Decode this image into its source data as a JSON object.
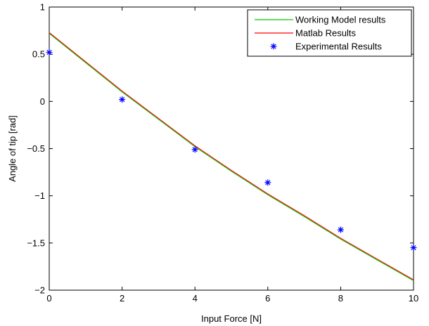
{
  "chart_data": {
    "type": "line",
    "title": "",
    "xlabel": "Input Force [N]",
    "ylabel": "Angle of tip [rad]",
    "xlim": [
      0,
      10
    ],
    "ylim": [
      -2,
      1
    ],
    "xticks": [
      0,
      2,
      4,
      6,
      8,
      10
    ],
    "yticks": [
      -2,
      -1.5,
      -1,
      -0.5,
      0,
      0.5,
      1
    ],
    "xtick_labels": [
      "0",
      "2",
      "4",
      "6",
      "8",
      "10"
    ],
    "ytick_labels": [
      "−2",
      "−1.5",
      "−1",
      "−0.5",
      "0",
      "0.5",
      "1"
    ],
    "grid": false,
    "legend_position": "top-right",
    "series": [
      {
        "name": "Working Model results",
        "kind": "line",
        "color": "#00cc00",
        "x": [
          0,
          1,
          2,
          3,
          4,
          5,
          6,
          7,
          8,
          9,
          10
        ],
        "y": [
          0.72,
          0.41,
          0.1,
          -0.19,
          -0.48,
          -0.74,
          -0.99,
          -1.22,
          -1.46,
          -1.68,
          -1.9
        ]
      },
      {
        "name": "Matlab Results",
        "kind": "line",
        "color": "#ff0000",
        "x": [
          0,
          1,
          2,
          3,
          4,
          5,
          6,
          7,
          8,
          9,
          10
        ],
        "y": [
          0.73,
          0.42,
          0.11,
          -0.18,
          -0.47,
          -0.73,
          -0.98,
          -1.21,
          -1.45,
          -1.67,
          -1.89
        ]
      },
      {
        "name": "Experimental Results",
        "kind": "scatter",
        "marker": "*",
        "color": "#0000ff",
        "x": [
          0,
          2,
          4,
          6,
          8,
          10
        ],
        "y": [
          0.52,
          0.02,
          -0.51,
          -0.86,
          -1.36,
          -1.55
        ]
      }
    ]
  }
}
